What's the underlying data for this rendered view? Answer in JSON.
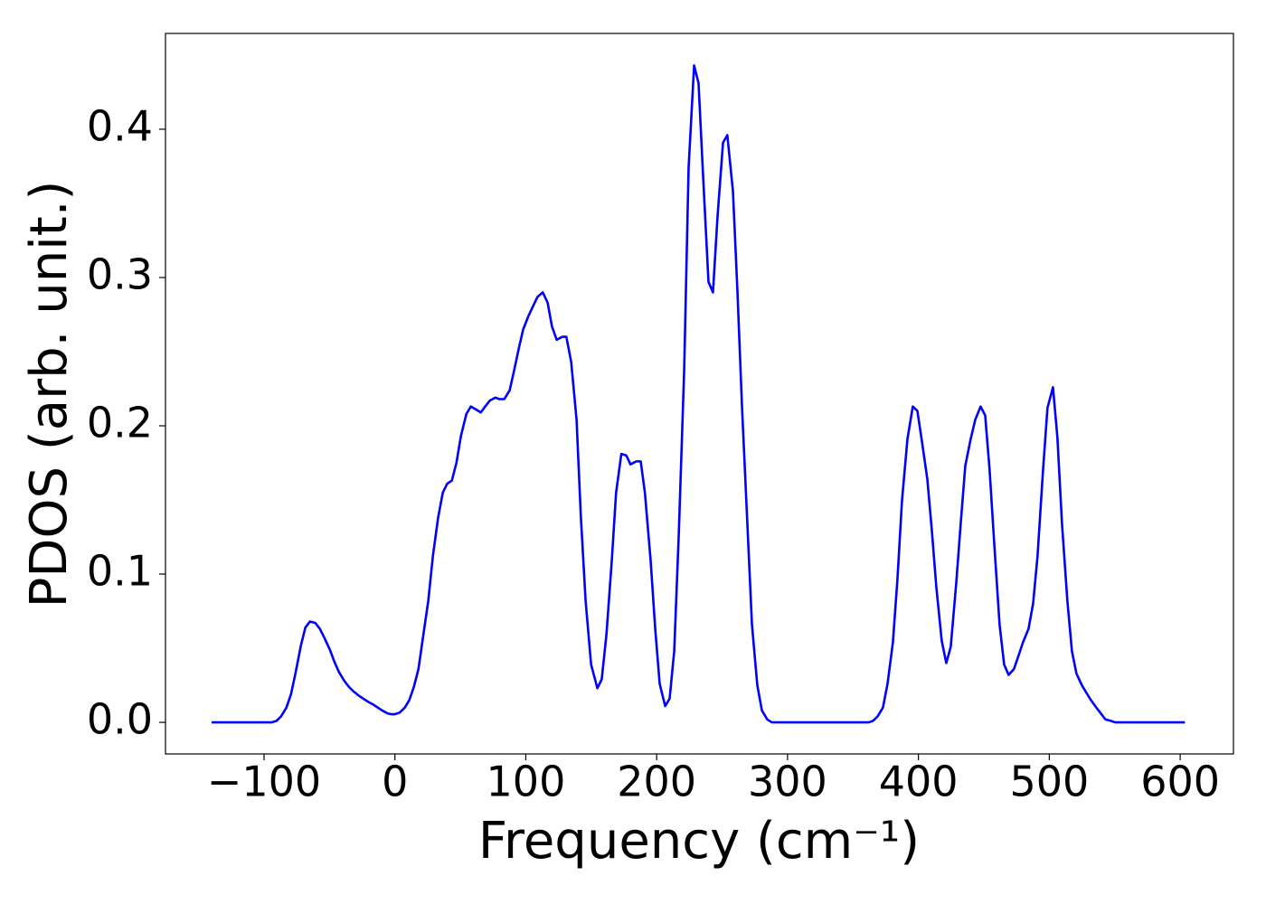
{
  "chart_data": {
    "type": "line",
    "xlabel": "Frequency (cm⁻¹)",
    "ylabel": "PDOS (arb. unit.)",
    "color": "#0000ff",
    "xlim": [
      -175.3,
      640.7
    ],
    "ylim": [
      -0.0213,
      0.4646
    ],
    "xticks": [
      {
        "value": -100,
        "label": "−100"
      },
      0,
      100,
      200,
      300,
      400,
      500,
      600
    ],
    "yticks": [
      {
        "value": 0,
        "label": "0.0"
      },
      0.1,
      0.2,
      0.3,
      0.4
    ],
    "x": [
      -140,
      -120,
      -100,
      -94,
      -90.5,
      -87,
      -82.9,
      -79.4,
      -76,
      -71.8,
      -68.4,
      -64.9,
      -60.8,
      -57.3,
      -53.9,
      -49.7,
      -46.3,
      -42.8,
      -38.7,
      -35.2,
      -31.8,
      -27.6,
      -24.2,
      -20.7,
      -16.6,
      -13.1,
      -9.7,
      -5.5,
      -2.8,
      0,
      3.5,
      7.6,
      11,
      14.5,
      18,
      21.4,
      25.5,
      29,
      33,
      36.6,
      40,
      43.5,
      47,
      50.4,
      54.6,
      58,
      62,
      65.6,
      69,
      72.5,
      76.7,
      80,
      83.6,
      87.7,
      91,
      94.6,
      98,
      102,
      105.7,
      109,
      113,
      116.7,
      120,
      123.6,
      127.8,
      131,
      134.7,
      138.8,
      142,
      145.7,
      149.9,
      154.7,
      158,
      161.6,
      165.7,
      169,
      173,
      176.8,
      180,
      184.4,
      187.8,
      191,
      195.4,
      198.9,
      202.3,
      206.5,
      209.9,
      213.4,
      216.9,
      221,
      224.4,
      228.6,
      232,
      235.5,
      239.6,
      243,
      246.5,
      250.7,
      254,
      258.3,
      261.7,
      265.2,
      269.3,
      272.8,
      276.9,
      280.4,
      284.5,
      288,
      300,
      320,
      340,
      362,
      365.3,
      368.8,
      372.9,
      376.4,
      380.5,
      384,
      387.4,
      391.6,
      395.7,
      399.2,
      402.6,
      406.8,
      410.2,
      413.7,
      417.8,
      421.3,
      424.7,
      428.9,
      432.3,
      435.8,
      439.9,
      443.4,
      447.5,
      451,
      454.4,
      457.9,
      462,
      465.5,
      468.9,
      473,
      476.5,
      479.9,
      484.1,
      487.6,
      491,
      495.2,
      498.6,
      502.8,
      506.2,
      509.7,
      513.8,
      517.3,
      520.7,
      524.9,
      528.3,
      531.8,
      535.9,
      539.4,
      542.8,
      546.9,
      550.4,
      570,
      590,
      603.6
    ],
    "values": [
      0,
      0,
      0,
      0,
      0.001,
      0.004,
      0.01,
      0.019,
      0.033,
      0.052,
      0.064,
      0.068,
      0.067,
      0.063,
      0.057,
      0.049,
      0.041,
      0.034,
      0.028,
      0.024,
      0.021,
      0.018,
      0.016,
      0.014,
      0.012,
      0.01,
      0.008,
      0.006,
      0.0055,
      0.0055,
      0.0065,
      0.01,
      0.015,
      0.024,
      0.036,
      0.057,
      0.082,
      0.112,
      0.138,
      0.155,
      0.161,
      0.163,
      0.175,
      0.193,
      0.208,
      0.213,
      0.211,
      0.209,
      0.213,
      0.217,
      0.219,
      0.218,
      0.218,
      0.224,
      0.237,
      0.252,
      0.265,
      0.274,
      0.281,
      0.287,
      0.29,
      0.283,
      0.267,
      0.258,
      0.26,
      0.26,
      0.243,
      0.204,
      0.14,
      0.082,
      0.039,
      0.023,
      0.029,
      0.059,
      0.109,
      0.155,
      0.181,
      0.18,
      0.174,
      0.176,
      0.176,
      0.155,
      0.109,
      0.063,
      0.026,
      0.011,
      0.016,
      0.048,
      0.127,
      0.237,
      0.374,
      0.443,
      0.431,
      0.368,
      0.297,
      0.29,
      0.341,
      0.391,
      0.396,
      0.358,
      0.291,
      0.213,
      0.134,
      0.066,
      0.025,
      0.008,
      0.002,
      0,
      0,
      0,
      0,
      0,
      0.001,
      0.004,
      0.01,
      0.026,
      0.054,
      0.097,
      0.149,
      0.191,
      0.213,
      0.21,
      0.19,
      0.164,
      0.13,
      0.091,
      0.055,
      0.04,
      0.051,
      0.094,
      0.134,
      0.173,
      0.191,
      0.204,
      0.213,
      0.207,
      0.17,
      0.121,
      0.066,
      0.039,
      0.032,
      0.036,
      0.045,
      0.054,
      0.063,
      0.08,
      0.112,
      0.17,
      0.212,
      0.226,
      0.192,
      0.134,
      0.082,
      0.048,
      0.033,
      0.025,
      0.02,
      0.015,
      0.01,
      0.006,
      0.002,
      0.001,
      0,
      0,
      0,
      0
    ]
  }
}
